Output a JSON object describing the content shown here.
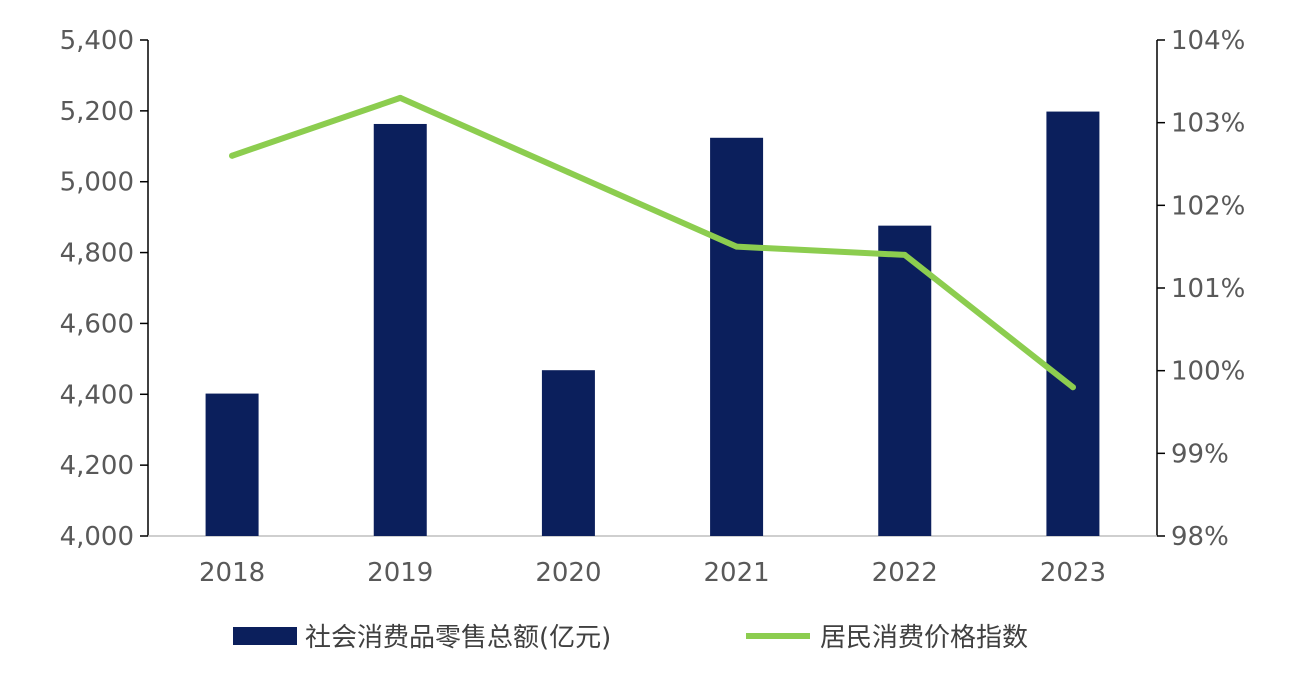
{
  "chart_data": {
    "type": "bar+line",
    "categories": [
      "2018",
      "2019",
      "2020",
      "2021",
      "2022",
      "2023"
    ],
    "series": [
      {
        "name": "社会消费品零售总额(亿元)",
        "type": "bar",
        "axis": "left",
        "color": "#0b1f5c",
        "values": [
          4402,
          5163,
          4468,
          5124,
          4876,
          5198
        ]
      },
      {
        "name": "居民消费价格指数",
        "type": "line",
        "axis": "right",
        "color": "#8ccd4f",
        "values": [
          102.6,
          103.3,
          102.4,
          101.5,
          101.4,
          99.8
        ]
      }
    ],
    "y_left": {
      "ylim": [
        4000,
        5400
      ],
      "ticks": [
        "4,000",
        "4,200",
        "4,400",
        "4,600",
        "4,800",
        "5,000",
        "5,200",
        "5,400"
      ]
    },
    "y_right": {
      "ylim": [
        98,
        104
      ],
      "ticks": [
        "98%",
        "99%",
        "100%",
        "101%",
        "102%",
        "103%",
        "104%"
      ]
    },
    "legend_position": "bottom",
    "grid": false,
    "title": "",
    "xlabel": "",
    "ylabel": ""
  }
}
